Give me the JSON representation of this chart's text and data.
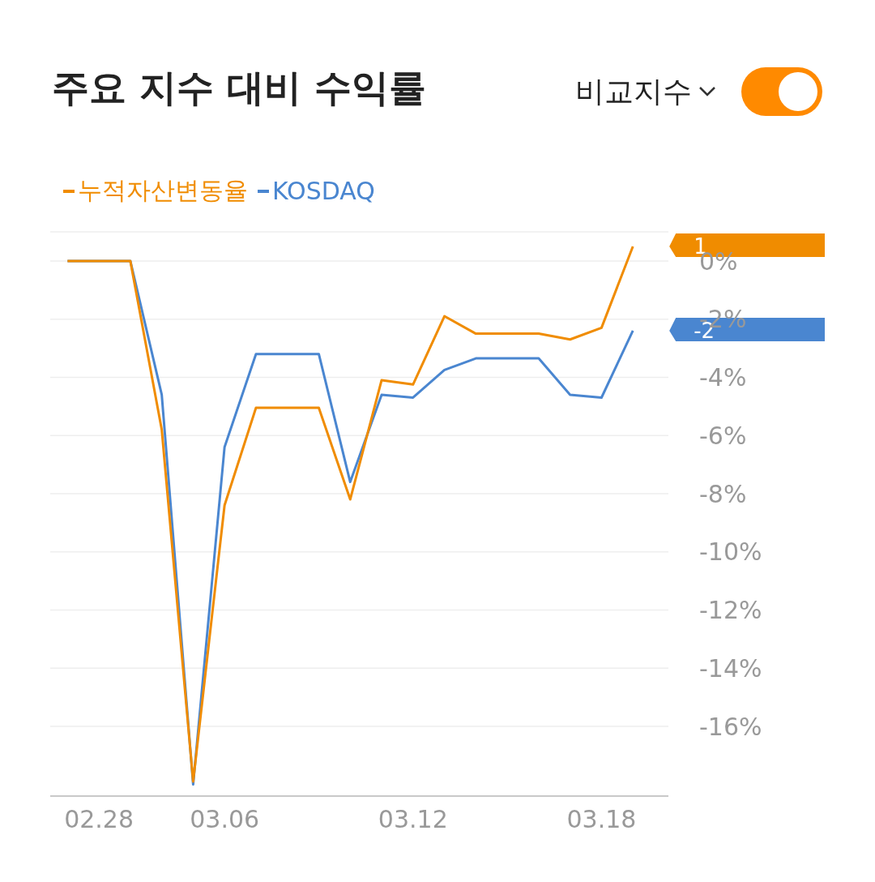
{
  "chart_data": {
    "type": "line",
    "title": "주요 지수 대비 수익률",
    "categories": [
      null,
      "02.28",
      null,
      null,
      null,
      "03.06",
      null,
      null,
      null,
      null,
      null,
      "03.12",
      null,
      null,
      null,
      null,
      null,
      "03.18",
      null
    ],
    "series": [
      {
        "name": "누적자산변동율",
        "color": "#f08c00",
        "values": [
          0,
          0,
          0,
          -5.8,
          -17.9,
          -8.4,
          -5.05,
          -5.05,
          -5.05,
          -8.2,
          -4.1,
          -4.25,
          -1.9,
          -2.5,
          -2.5,
          -2.5,
          -2.7,
          -2.3,
          0.5
        ]
      },
      {
        "name": "KOSDAQ",
        "color": "#4a86d0",
        "values": [
          0,
          0,
          0,
          -4.6,
          -18.0,
          -6.4,
          -3.2,
          -3.2,
          -3.2,
          -7.6,
          -4.6,
          -4.7,
          -3.75,
          -3.35,
          -3.35,
          -3.35,
          -4.6,
          -4.7,
          -2.4
        ]
      }
    ],
    "ylim": [
      -18.4,
      1
    ],
    "yticks": [
      {
        "value": 0,
        "label": "0%"
      },
      {
        "value": -2,
        "label": "-2%"
      },
      {
        "value": -4,
        "label": "-4%"
      },
      {
        "value": -6,
        "label": "-6%"
      },
      {
        "value": -8,
        "label": "-8%"
      },
      {
        "value": -10,
        "label": "-10%"
      },
      {
        "value": -12,
        "label": "-12%"
      },
      {
        "value": -14,
        "label": "-14%"
      },
      {
        "value": -16,
        "label": "-16%"
      }
    ],
    "grid": "y",
    "legend": "top left",
    "marker": "none",
    "line_style": "solid",
    "annotations": [
      "비교지수",
      "1",
      "-2"
    ]
  }
}
